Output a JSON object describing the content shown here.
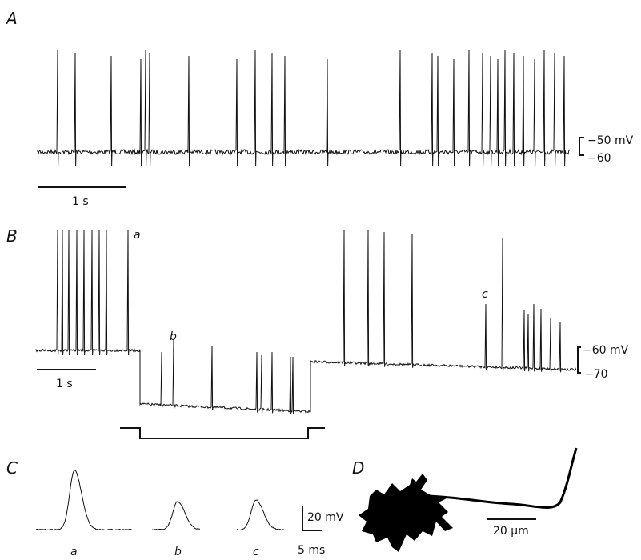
{
  "panels": {
    "A": {
      "label": "A",
      "scale_top": "−50 mV",
      "scale_bottom": "−60",
      "time_scale": "1 s"
    },
    "B": {
      "label": "B",
      "markers": [
        "a",
        "b",
        "c"
      ],
      "scale_top": "−60 mV",
      "scale_bottom": "−70",
      "time_scale": "1 s"
    },
    "C": {
      "label": "C",
      "traces": [
        "a",
        "b",
        "c"
      ],
      "scale_voltage": "20 mV",
      "scale_time": "5 ms"
    },
    "D": {
      "label": "D",
      "scale": "20 μm"
    }
  }
}
